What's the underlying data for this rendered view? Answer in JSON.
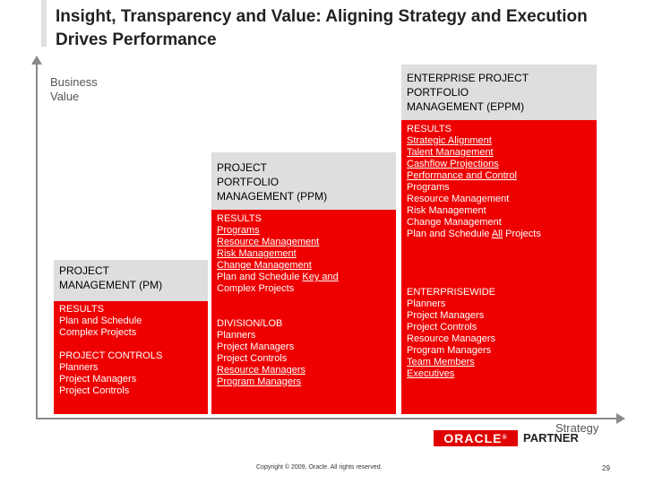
{
  "title": "Insight, Transparency and Value: Aligning Strategy and Execution Drives Performance",
  "axes": {
    "y_label_1": "Business",
    "y_label_2": "Value",
    "x_label": "Strategy"
  },
  "pm": {
    "header_1": "PROJECT",
    "header_2": "MANAGEMENT (PM)",
    "results": [
      "RESULTS",
      "Plan and Schedule",
      "Complex Projects"
    ],
    "controls": [
      "PROJECT CONTROLS",
      "Planners",
      "Project Managers",
      "Project Controls"
    ]
  },
  "ppm": {
    "header_1": "PROJECT",
    "header_2": "PORTFOLIO",
    "header_3": "MANAGEMENT (PPM)",
    "results_title": "RESULTS",
    "results": [
      "Programs",
      "Resource Management",
      "Risk Management",
      "Change Management"
    ],
    "results_plan_pre": "Plan and Schedule ",
    "results_plan_u": "Key and",
    "results_last": "Complex Projects",
    "division_title": "DIVISION/LOB",
    "division": [
      "Planners",
      "Project Managers",
      "Project Controls",
      "Resource Managers",
      "Program Managers"
    ]
  },
  "eppm": {
    "header_1": "ENTERPRISE PROJECT",
    "header_2": "PORTFOLIO",
    "header_3": "MANAGEMENT (EPPM)",
    "results_title": "RESULTS",
    "results_u": [
      "Strategic Alignment",
      "Talent Management",
      "Cashflow Projections",
      "Performance and Control"
    ],
    "results": [
      "Programs",
      "Resource Management",
      "Risk Management",
      "Change Management"
    ],
    "results_plan_pre": "Plan and Schedule ",
    "results_plan_u": "All",
    "results_plan_post": " Projects",
    "enterprise_title": "ENTERPRISEWIDE",
    "enterprise": [
      "Planners",
      "Project Managers",
      "Project Controls",
      "Resource Managers",
      "Program Managers"
    ],
    "enterprise_u": [
      "Team Members",
      "Executives"
    ]
  },
  "footer": {
    "logo": "ORACLE",
    "logo_mark": "®",
    "partner": "PARTNER",
    "copyright": "Copyright © 2009, Oracle. All rights reserved.",
    "page": "29"
  },
  "colors": {
    "accent_red": "#ee0000",
    "header_gray": "#dedede"
  }
}
